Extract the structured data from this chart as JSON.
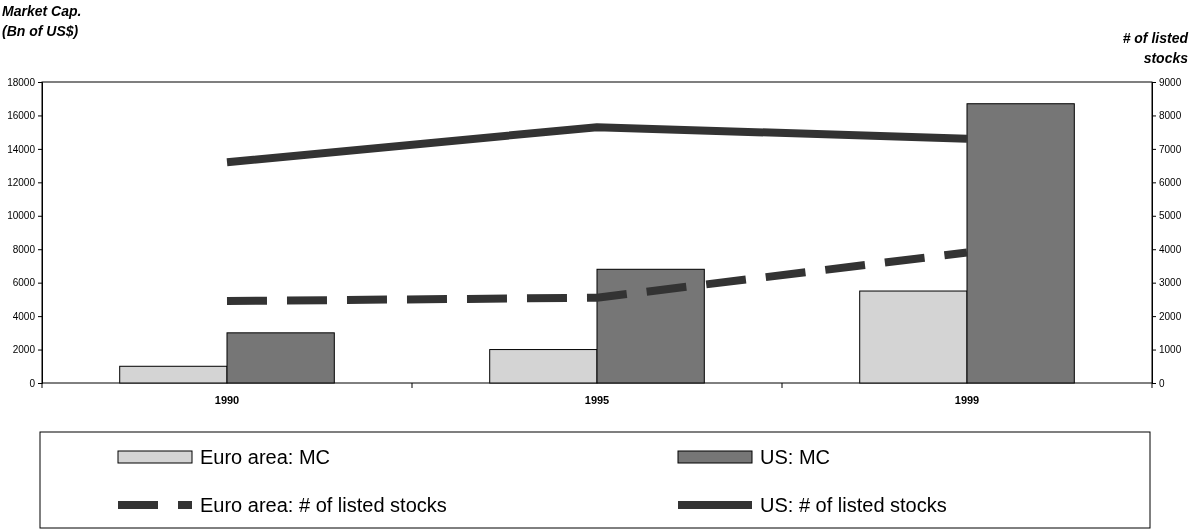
{
  "chart_data": {
    "type": "bar",
    "ylabel": "Market Cap.\n(Bn of US$)",
    "y2label": "# of listed\nstocks",
    "categories": [
      "1990",
      "1995",
      "1999"
    ],
    "series": [
      {
        "name": "Euro area: MC",
        "color": "#d4d4d4",
        "values": [
          1000,
          2000,
          5500
        ]
      },
      {
        "name": "US: MC",
        "color": "#767676",
        "values": [
          3000,
          6800,
          16700
        ]
      },
      {
        "name": "Euro area: # of listed stocks",
        "type": "line",
        "axis": "y2",
        "line_style": "dashed",
        "color": "#333333",
        "values": [
          2450,
          2550,
          3900
        ]
      },
      {
        "name": "US: # of listed stocks",
        "type": "line",
        "axis": "y2",
        "line_style": "solid",
        "color": "#333333",
        "values": [
          6600,
          7650,
          7300
        ]
      }
    ],
    "ylim": [
      0,
      18000
    ],
    "yticks": [
      0,
      2000,
      4000,
      6000,
      8000,
      10000,
      12000,
      14000,
      16000,
      18000
    ],
    "y2lim": [
      0,
      9000
    ],
    "y2ticks": [
      0,
      1000,
      2000,
      3000,
      4000,
      5000,
      6000,
      7000,
      8000,
      9000
    ],
    "grid": false,
    "legend": "bottom"
  }
}
